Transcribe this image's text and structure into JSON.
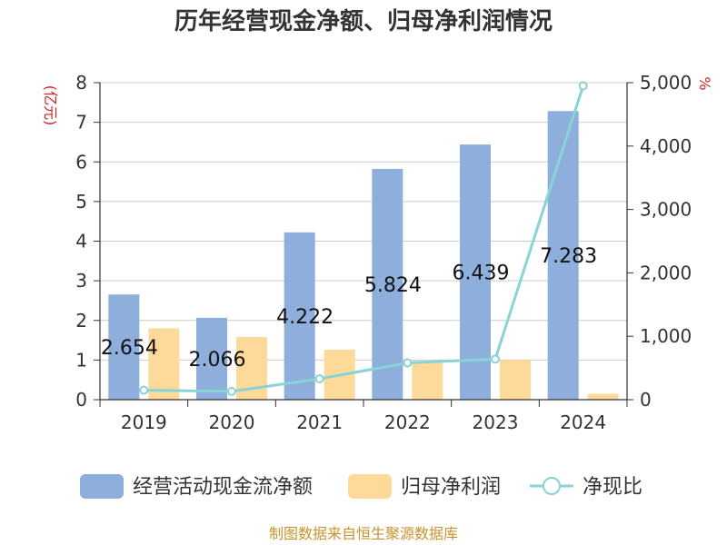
{
  "chart_data": {
    "type": "bar",
    "title": "历年经营现金净额、归母净利润情况",
    "categories": [
      "2019",
      "2020",
      "2021",
      "2022",
      "2023",
      "2024"
    ],
    "left_axis": {
      "unit": "(亿元)",
      "range": [
        0,
        8
      ],
      "ticks": [
        "0",
        "1",
        "2",
        "3",
        "4",
        "5",
        "6",
        "7",
        "8"
      ]
    },
    "right_axis": {
      "unit": "%",
      "range": [
        0,
        5000
      ],
      "ticks": [
        "0",
        "1,000",
        "2,000",
        "3,000",
        "4,000",
        "5,000"
      ]
    },
    "series": [
      {
        "name": "经营活动现金流净额",
        "type": "bar",
        "axis": "left",
        "color": "#8eaedc",
        "values": [
          2.654,
          2.066,
          4.222,
          5.824,
          6.439,
          7.283
        ],
        "labels": [
          "2.654",
          "2.066",
          "4.222",
          "5.824",
          "6.439",
          "7.283"
        ]
      },
      {
        "name": "归母净利润",
        "type": "bar",
        "axis": "left",
        "color": "#fdd99a",
        "values": [
          1.8,
          1.58,
          1.26,
          0.98,
          1.0,
          0.15
        ]
      },
      {
        "name": "净现比",
        "type": "line",
        "axis": "right",
        "color": "#88d3d6",
        "values": [
          150,
          130,
          330,
          580,
          640,
          4950
        ]
      }
    ],
    "grid": true,
    "legend_position": "bottom"
  },
  "footer": {
    "source": "制图数据来自恒生聚源数据库"
  }
}
